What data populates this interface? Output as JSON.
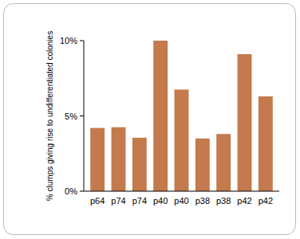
{
  "chart_data": {
    "type": "bar",
    "y_label": "% clumps giving rise to undifferentiated colonies",
    "categories": [
      "p64",
      "p74",
      "p74",
      "p40",
      "p40",
      "p38",
      "p38",
      "p42",
      "p42"
    ],
    "values": [
      4.2,
      4.25,
      3.55,
      10.0,
      6.75,
      3.5,
      3.8,
      9.1,
      6.3
    ],
    "color": "#c47a4c",
    "ylim": [
      0,
      10
    ],
    "yticks": [
      {
        "value": 0,
        "label": "0%"
      },
      {
        "value": 5,
        "label": "5%"
      },
      {
        "value": 10,
        "label": "10%"
      }
    ],
    "grid": false
  }
}
